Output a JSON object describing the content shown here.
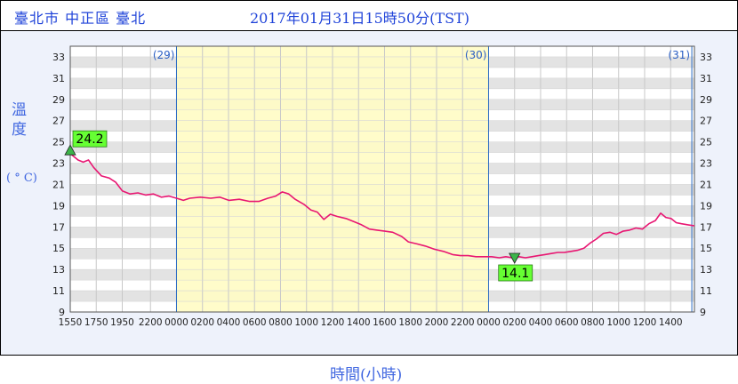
{
  "header": {
    "location": "臺北市 中正區 臺北",
    "timestamp": "2017年01月31日15時50分(TST)"
  },
  "chart_data": {
    "type": "line",
    "title": "",
    "ylabel_chars": [
      "溫",
      "度"
    ],
    "ylabel_unit": "( ° C)",
    "xlabel": "時間(小時)",
    "ylim": [
      9,
      34
    ],
    "yticks": [
      9,
      11,
      13,
      15,
      17,
      19,
      21,
      23,
      25,
      27,
      29,
      31,
      33
    ],
    "x_unit": "hours since 2017-01-29 15:50",
    "xlim": [
      0,
      48
    ],
    "xticks": [
      {
        "x": 0,
        "label": "1550"
      },
      {
        "x": 2,
        "label": "1750"
      },
      {
        "x": 4,
        "label": "1950"
      },
      {
        "x": 6.17,
        "label": "2200"
      },
      {
        "x": 8.17,
        "label": "0000"
      },
      {
        "x": 10.17,
        "label": "0200"
      },
      {
        "x": 12.17,
        "label": "0400"
      },
      {
        "x": 14.17,
        "label": "0600"
      },
      {
        "x": 16.17,
        "label": "0800"
      },
      {
        "x": 18.17,
        "label": "1000"
      },
      {
        "x": 20.17,
        "label": "1200"
      },
      {
        "x": 22.17,
        "label": "1400"
      },
      {
        "x": 24.17,
        "label": "1600"
      },
      {
        "x": 26.17,
        "label": "1800"
      },
      {
        "x": 28.17,
        "label": "2000"
      },
      {
        "x": 30.17,
        "label": "2200"
      },
      {
        "x": 32.17,
        "label": "0000"
      },
      {
        "x": 34.17,
        "label": "0200"
      },
      {
        "x": 36.17,
        "label": "0400"
      },
      {
        "x": 38.17,
        "label": "0600"
      },
      {
        "x": 40.17,
        "label": "0800"
      },
      {
        "x": 42.17,
        "label": "1000"
      },
      {
        "x": 44.17,
        "label": "1200"
      },
      {
        "x": 46.17,
        "label": "1400"
      }
    ],
    "day_markers": [
      {
        "x": 8.17,
        "label": "(29)"
      },
      {
        "x": 32.17,
        "label": "(30)"
      },
      {
        "x": 47.8,
        "label": "(31)"
      }
    ],
    "shaded_region": [
      8.17,
      32.17
    ],
    "shaded_color": "#fffcc4",
    "line_color": "#e81672",
    "grid": true,
    "series": [
      {
        "values": [
          [
            0,
            23.9
          ],
          [
            0.3,
            23.6
          ],
          [
            0.6,
            23.3
          ],
          [
            1.0,
            23.1
          ],
          [
            1.4,
            23.3
          ],
          [
            1.8,
            22.6
          ],
          [
            2.4,
            21.8
          ],
          [
            3.0,
            21.6
          ],
          [
            3.5,
            21.2
          ],
          [
            4.0,
            20.4
          ],
          [
            4.6,
            20.1
          ],
          [
            5.2,
            20.2
          ],
          [
            5.8,
            20.0
          ],
          [
            6.4,
            20.1
          ],
          [
            7.0,
            19.8
          ],
          [
            7.6,
            19.9
          ],
          [
            8.17,
            19.7
          ],
          [
            8.7,
            19.5
          ],
          [
            9.2,
            19.7
          ],
          [
            10.0,
            19.8
          ],
          [
            10.8,
            19.7
          ],
          [
            11.5,
            19.8
          ],
          [
            12.2,
            19.5
          ],
          [
            13.0,
            19.6
          ],
          [
            13.8,
            19.4
          ],
          [
            14.5,
            19.4
          ],
          [
            15.2,
            19.7
          ],
          [
            15.8,
            19.9
          ],
          [
            16.3,
            20.3
          ],
          [
            16.8,
            20.1
          ],
          [
            17.3,
            19.6
          ],
          [
            18.0,
            19.1
          ],
          [
            18.5,
            18.6
          ],
          [
            19.0,
            18.4
          ],
          [
            19.5,
            17.7
          ],
          [
            20.0,
            18.2
          ],
          [
            20.5,
            18.0
          ],
          [
            21.2,
            17.8
          ],
          [
            21.8,
            17.5
          ],
          [
            22.4,
            17.2
          ],
          [
            23.0,
            16.8
          ],
          [
            23.6,
            16.7
          ],
          [
            24.2,
            16.6
          ],
          [
            24.8,
            16.5
          ],
          [
            25.5,
            16.1
          ],
          [
            26.0,
            15.6
          ],
          [
            26.7,
            15.4
          ],
          [
            27.3,
            15.2
          ],
          [
            28.0,
            14.9
          ],
          [
            28.7,
            14.7
          ],
          [
            29.4,
            14.4
          ],
          [
            30.0,
            14.3
          ],
          [
            30.6,
            14.3
          ],
          [
            31.2,
            14.2
          ],
          [
            31.8,
            14.2
          ],
          [
            32.4,
            14.2
          ],
          [
            33.0,
            14.1
          ],
          [
            33.5,
            14.2
          ],
          [
            34.0,
            14.1
          ],
          [
            34.5,
            14.2
          ],
          [
            35.0,
            14.1
          ],
          [
            35.5,
            14.2
          ],
          [
            36.0,
            14.3
          ],
          [
            36.5,
            14.4
          ],
          [
            37.0,
            14.5
          ],
          [
            37.5,
            14.6
          ],
          [
            38.0,
            14.6
          ],
          [
            38.5,
            14.7
          ],
          [
            39.0,
            14.8
          ],
          [
            39.5,
            15.0
          ],
          [
            40.0,
            15.5
          ],
          [
            40.5,
            15.9
          ],
          [
            41.0,
            16.4
          ],
          [
            41.5,
            16.5
          ],
          [
            42.0,
            16.3
          ],
          [
            42.5,
            16.6
          ],
          [
            43.0,
            16.7
          ],
          [
            43.5,
            16.9
          ],
          [
            44.0,
            16.8
          ],
          [
            44.5,
            17.3
          ],
          [
            45.0,
            17.6
          ],
          [
            45.4,
            18.3
          ],
          [
            45.8,
            17.9
          ],
          [
            46.2,
            17.8
          ],
          [
            46.6,
            17.4
          ],
          [
            47.0,
            17.3
          ],
          [
            47.5,
            17.2
          ],
          [
            48.0,
            17.1
          ]
        ]
      }
    ],
    "annotations": [
      {
        "label": "24.2",
        "x": 0,
        "y": 24.2,
        "marker": "up-triangle",
        "marker_color": "#3cb54a",
        "box_color": "#66ff33"
      },
      {
        "label": "14.1",
        "x": 34.17,
        "y": 14.1,
        "marker": "down-triangle",
        "marker_color": "#3cb54a",
        "box_color": "#66ff33"
      }
    ]
  }
}
